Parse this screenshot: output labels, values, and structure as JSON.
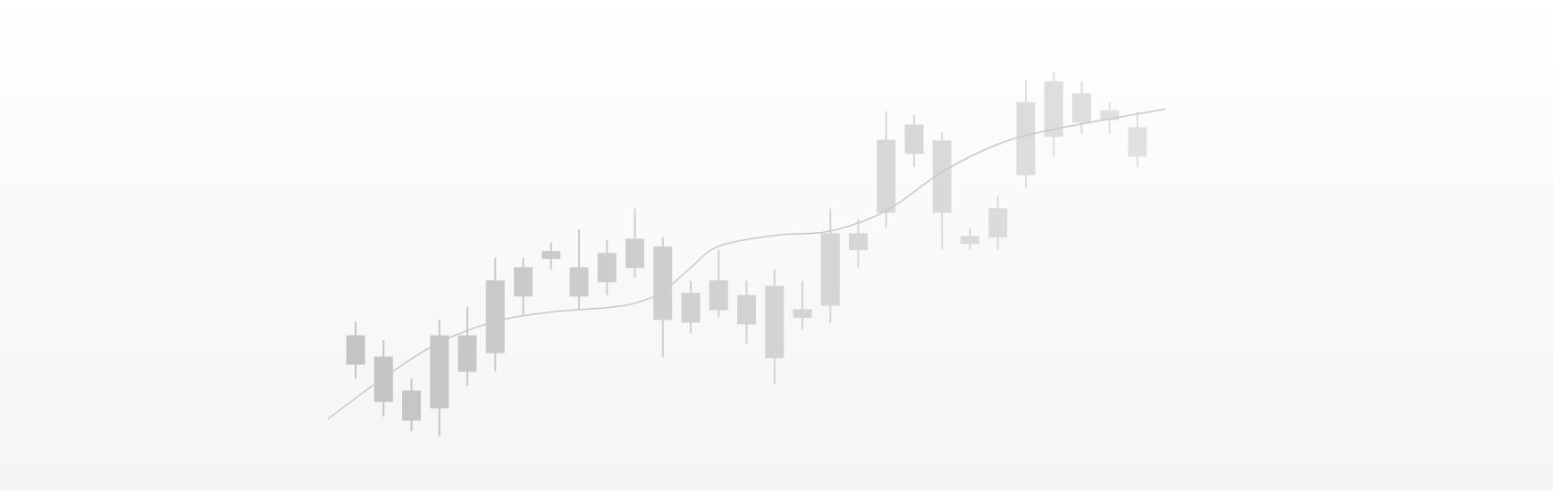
{
  "chart_data": {
    "type": "candlestick",
    "grid": false,
    "legend": "none",
    "xlim": [
      0,
      32
    ],
    "ylim": [
      0,
      100
    ],
    "colors": {
      "candle_start": "#c4c4c4",
      "candle_end": "#e2e2e2",
      "overlay_line": "#c8c8c8",
      "background_top": "#ffffff",
      "background_bottom": "#f5f5f5"
    },
    "candles": [
      {
        "x": 1,
        "open": 22.0,
        "close": 13.6,
        "high": 26.2,
        "low": 9.4
      },
      {
        "x": 2,
        "open": 15.7,
        "close": 2.6,
        "high": 20.7,
        "low": -1.8
      },
      {
        "x": 3,
        "open": 5.7,
        "close": -2.9,
        "high": 9.4,
        "low": -6.2
      },
      {
        "x": 4,
        "open": 22.0,
        "close": 0.7,
        "high": 26.8,
        "low": -7.7
      },
      {
        "x": 5,
        "open": 22.0,
        "close": 11.5,
        "high": 30.5,
        "low": 7.3
      },
      {
        "x": 6,
        "open": 38.2,
        "close": 17.0,
        "high": 45.0,
        "low": 11.5
      },
      {
        "x": 7,
        "open": 42.1,
        "close": 33.7,
        "high": 45.0,
        "low": 27.9
      },
      {
        "x": 8,
        "open": 46.9,
        "close": 44.8,
        "high": 49.5,
        "low": 41.6
      },
      {
        "x": 9,
        "open": 42.1,
        "close": 33.7,
        "high": 53.4,
        "low": 29.5
      },
      {
        "x": 10,
        "open": 46.3,
        "close": 37.9,
        "high": 50.3,
        "low": 34.0
      },
      {
        "x": 11,
        "open": 50.5,
        "close": 42.1,
        "high": 59.5,
        "low": 39.2
      },
      {
        "x": 12,
        "open": 48.2,
        "close": 26.8,
        "high": 51.1,
        "low": 15.7
      },
      {
        "x": 13,
        "open": 34.5,
        "close": 26.0,
        "high": 38.2,
        "low": 22.8
      },
      {
        "x": 14,
        "open": 38.2,
        "close": 29.7,
        "high": 47.4,
        "low": 27.6
      },
      {
        "x": 15,
        "open": 33.9,
        "close": 25.5,
        "high": 38.2,
        "low": 19.7
      },
      {
        "x": 16,
        "open": 36.6,
        "close": 15.5,
        "high": 41.6,
        "low": 7.6
      },
      {
        "x": 17,
        "open": 29.7,
        "close": 27.4,
        "high": 38.2,
        "low": 23.9
      },
      {
        "x": 18,
        "open": 31.0,
        "close": 52.1,
        "high": 59.5,
        "low": 25.8
      },
      {
        "x": 19,
        "open": 52.1,
        "close": 47.4,
        "high": 56.5,
        "low": 42.1
      },
      {
        "x": 20,
        "open": 58.4,
        "close": 79.7,
        "high": 88.2,
        "low": 53.8
      },
      {
        "x": 21,
        "open": 84.2,
        "close": 75.8,
        "high": 87.1,
        "low": 71.8
      },
      {
        "x": 22,
        "open": 58.4,
        "close": 79.5,
        "high": 82.1,
        "low": 47.4
      },
      {
        "x": 23,
        "open": 49.2,
        "close": 51.3,
        "high": 53.6,
        "low": 47.4
      },
      {
        "x": 24,
        "open": 59.5,
        "close": 51.1,
        "high": 63.2,
        "low": 47.4
      },
      {
        "x": 25,
        "open": 69.5,
        "close": 90.8,
        "high": 97.4,
        "low": 65.8
      },
      {
        "x": 26,
        "open": 96.9,
        "close": 80.8,
        "high": 100.0,
        "low": 74.9
      },
      {
        "x": 27,
        "open": 93.4,
        "close": 85.0,
        "high": 96.9,
        "low": 81.6
      },
      {
        "x": 28,
        "open": 85.8,
        "close": 88.4,
        "high": 90.8,
        "low": 81.6
      },
      {
        "x": 29,
        "open": 83.4,
        "close": 75.0,
        "high": 88.2,
        "low": 71.8
      }
    ],
    "overlay_line": {
      "x": [
        0,
        2,
        4,
        6,
        8,
        10,
        11,
        12,
        13,
        14,
        16,
        18,
        20,
        22,
        24,
        26,
        30
      ],
      "y": [
        -2.6,
        9.6,
        20.0,
        26.2,
        29.0,
        30.3,
        31.6,
        35.0,
        42.1,
        48.4,
        51.6,
        52.9,
        58.9,
        70.3,
        78.5,
        82.9,
        88.9
      ]
    }
  }
}
